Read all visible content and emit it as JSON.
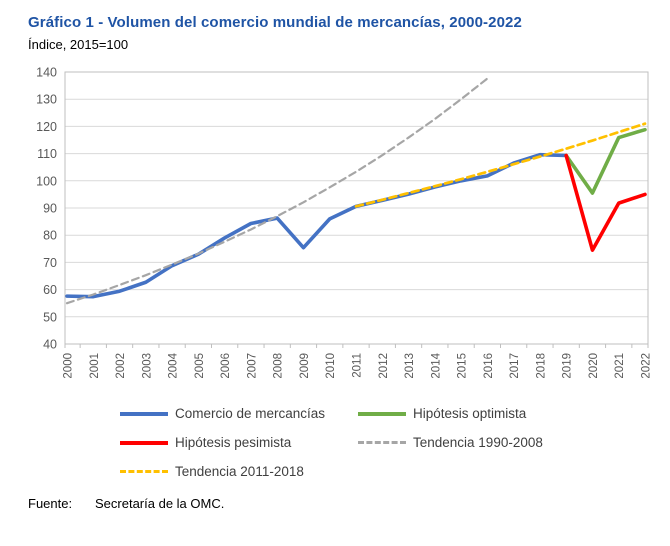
{
  "page": {
    "title": "Gráfico 1 - Volumen del comercio mundial de mercancías, 2000-2022",
    "subtitle": "Índice, 2015=100",
    "source_label": "Fuente:",
    "source_text": "Secretaría de la OMC."
  },
  "colors": {
    "title_text": "#1F54A5",
    "legend_text": "#404040",
    "grid_line": "#D9D9D9",
    "plot_border": "#BFBFBF",
    "axis_tick": "#BFBFBF",
    "tick_label_text": "#595959"
  },
  "chart_data": {
    "type": "line",
    "title": "Gráfico 1 - Volumen del comercio mundial de mercancías, 2000-2022",
    "subtitle": "Índice, 2015=100",
    "xlabel": "",
    "ylabel": "Índice, 2015=100",
    "x_years": [
      2000,
      2001,
      2002,
      2003,
      2004,
      2005,
      2006,
      2007,
      2008,
      2009,
      2010,
      2011,
      2012,
      2013,
      2014,
      2015,
      2016,
      2017,
      2018,
      2019,
      2020,
      2021,
      2022
    ],
    "ylim": [
      40,
      140
    ],
    "ytick_step": 10,
    "grid": "horizontal",
    "legend_position": "bottom",
    "series": [
      {
        "name": "Comercio de mercancías",
        "color": "#4472C4",
        "style": "solid",
        "width": 3.6,
        "start_year": 2000,
        "values": [
          57.6,
          57.4,
          59.4,
          62.7,
          68.8,
          73.0,
          79.0,
          84.3,
          86.3,
          75.4,
          86.0,
          90.6,
          92.8,
          95.1,
          97.7,
          100.0,
          101.8,
          106.5,
          109.6,
          109.3
        ]
      },
      {
        "name": "Hipótesis optimista",
        "color": "#70AD47",
        "style": "solid",
        "width": 3.6,
        "start_year": 2019,
        "values": [
          109.3,
          95.5,
          115.9,
          118.8
        ]
      },
      {
        "name": "Hipótesis pesimista",
        "color": "#FF0000",
        "style": "solid",
        "width": 3.6,
        "start_year": 2019,
        "values": [
          109.3,
          74.5,
          91.8,
          95.0
        ]
      },
      {
        "name": "Tendencia 1990-2008",
        "color": "#A6A6A6",
        "style": "dashed",
        "width": 2.2,
        "start_year": 2000,
        "values": [
          55.0,
          58.2,
          61.7,
          65.3,
          69.2,
          73.2,
          77.6,
          82.1,
          87.0,
          92.1,
          97.6,
          103.3,
          109.4,
          115.9,
          122.7,
          130.0,
          137.6
        ]
      },
      {
        "name": "Tendencia 2011-2018",
        "color": "#FFC000",
        "style": "dashed",
        "width": 2.7,
        "start_year": 2011,
        "values": [
          90.6,
          93.0,
          95.5,
          98.0,
          100.6,
          103.3,
          106.1,
          108.9,
          111.8,
          114.8,
          117.9,
          121.0
        ]
      }
    ]
  }
}
